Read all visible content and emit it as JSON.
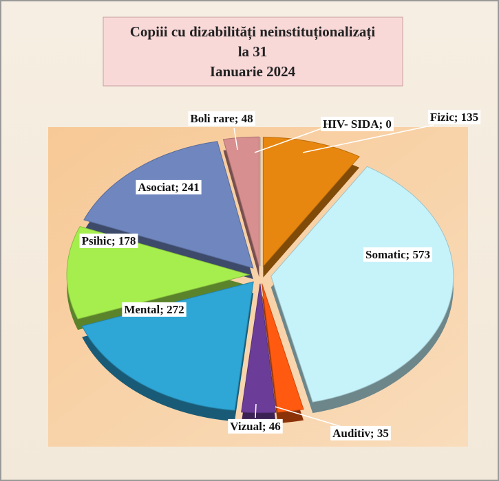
{
  "chart_data": {
    "type": "pie",
    "title": [
      "Copiii cu dizabilități neinstituționalizați",
      "la 31",
      "Ianuarie 2024"
    ],
    "values": [
      135,
      573,
      35,
      46,
      272,
      178,
      241,
      48,
      0
    ],
    "value_labels": [
      "Fizic; 135",
      "Somatic; 573",
      "Auditiv; 35",
      "Vizual; 46",
      "Mental; 272",
      "Psihic; 178",
      "Asociat; 241",
      "Boli rare; 48",
      "HIV- SIDA; 0"
    ],
    "colors": [
      "#e8870f",
      "#c6f3fa",
      "#ff5a10",
      "#6b3d98",
      "#2ea6d6",
      "#a6ee4e",
      "#6f86bf",
      "#d88f8f",
      "#c8c8c8"
    ]
  }
}
